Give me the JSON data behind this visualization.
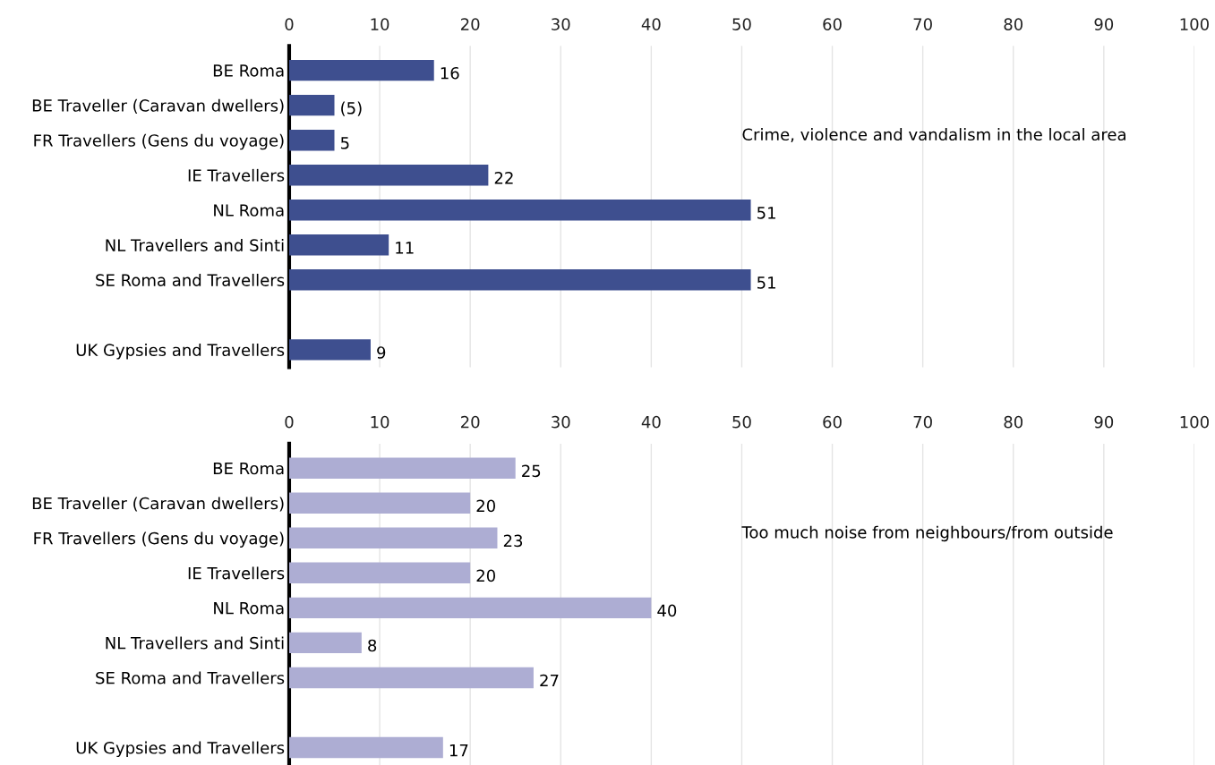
{
  "chart_data": [
    {
      "type": "bar",
      "orientation": "horizontal",
      "categories": [
        "BE Roma",
        "BE Traveller (Caravan dwellers)",
        "FR Travellers (Gens du voyage)",
        "IE Travellers",
        "NL Roma",
        "NL Travellers and Sinti",
        "SE Roma and Travellers",
        null,
        "UK Gypsies and Travellers"
      ],
      "values": [
        16,
        5,
        5,
        22,
        51,
        11,
        51,
        null,
        9
      ],
      "value_labels": [
        "16",
        "(5)",
        "5",
        "22",
        "51",
        "11",
        "51",
        null,
        "9"
      ],
      "color": "#3e4f8f",
      "xlim": [
        0,
        100
      ],
      "xticks": [
        0,
        10,
        20,
        30,
        40,
        50,
        60,
        70,
        80,
        90,
        100
      ],
      "grid": "x",
      "annotations": [
        "Crime, violence and vandalism in the local area"
      ]
    },
    {
      "type": "bar",
      "orientation": "horizontal",
      "categories": [
        "BE Roma",
        "BE Traveller (Caravan dwellers)",
        "FR Travellers (Gens du voyage)",
        "IE Travellers",
        "NL Roma",
        "NL Travellers and Sinti",
        "SE Roma and Travellers",
        null,
        "UK Gypsies and Travellers"
      ],
      "values": [
        25,
        20,
        23,
        20,
        40,
        8,
        27,
        null,
        17
      ],
      "data_labels": true,
      "color": "#adadd3",
      "xlim": [
        0,
        100
      ],
      "xticks": [
        0,
        10,
        20,
        30,
        40,
        50,
        60,
        70,
        80,
        90,
        100
      ],
      "grid": "x",
      "annotations": [
        "Too much noise from neighbours/from outside"
      ]
    }
  ]
}
